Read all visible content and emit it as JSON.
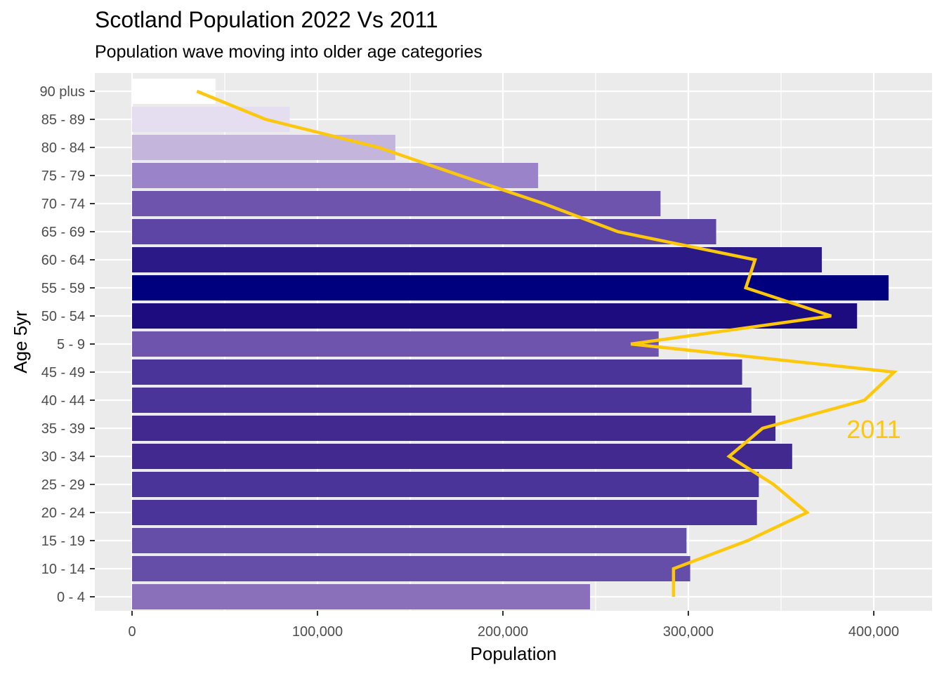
{
  "title": "Scotland Population 2022 Vs 2011",
  "subtitle": "Population wave moving into older age categories",
  "chart_data": {
    "type": "bar",
    "orientation": "horizontal",
    "xlabel": "Population",
    "ylabel": "Age 5yr",
    "xlim": [
      -20000,
      425000
    ],
    "x_ticks": [
      0,
      100000,
      200000,
      300000,
      400000
    ],
    "x_tick_labels": [
      "0",
      "100,000",
      "200,000",
      "300,000",
      "400,000"
    ],
    "categories": [
      "0 - 4",
      "10 - 14",
      "15 - 19",
      "20 - 24",
      "25 - 29",
      "30 - 34",
      "35 - 39",
      "40 - 44",
      "45 - 49",
      "5 - 9",
      "50 - 54",
      "55 - 59",
      "60 - 64",
      "65 - 69",
      "70 - 74",
      "75 - 79",
      "80 - 84",
      "85 - 89",
      "90 plus"
    ],
    "series": [
      {
        "type": "bar",
        "values": [
          247000,
          301000,
          299000,
          337000,
          338000,
          356000,
          347000,
          334000,
          329000,
          284000,
          391000,
          408000,
          372000,
          315000,
          285000,
          219000,
          142000,
          85000,
          45000
        ],
        "colors": [
          "#8a6fba",
          "#644ea8",
          "#644ea8",
          "#4a3399",
          "#4a3399",
          "#42298f",
          "#42298f",
          "#4a3399",
          "#4a3399",
          "#6f54ad",
          "#1d0c80",
          "#00007f",
          "#2c1988",
          "#5c45a5",
          "#6f54ad",
          "#9b83c9",
          "#c4b5dd",
          "#e4def0",
          "#ffffff"
        ]
      },
      {
        "type": "line",
        "name": "2011",
        "values": [
          292000,
          292000,
          332000,
          364000,
          346000,
          322000,
          340000,
          395000,
          411000,
          269000,
          377000,
          331000,
          336000,
          262000,
          222000,
          177000,
          133000,
          72000,
          35000
        ],
        "color": "#fdc70c"
      }
    ],
    "grid": true,
    "panel_background": "#ebebeb"
  }
}
